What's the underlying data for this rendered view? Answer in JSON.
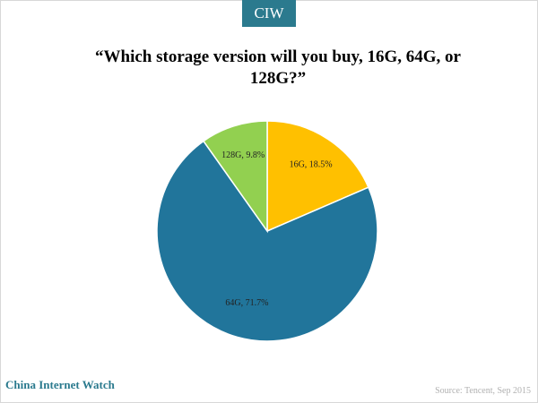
{
  "header": {
    "logo": "CIW"
  },
  "chart_data": {
    "type": "pie",
    "title": "“Which storage version will you buy, 16G, 64G, or 128G?”",
    "values": [
      18.5,
      71.7,
      9.8
    ],
    "value_labels": [
      "16G, 18.5%",
      "64G, 71.7%",
      "128G, 9.8%"
    ],
    "colors": [
      "#ffc000",
      "#21759b",
      "#92d050"
    ]
  },
  "footer": {
    "brand": "China Internet Watch",
    "source": "Source: Tencent, Sep 2015"
  }
}
